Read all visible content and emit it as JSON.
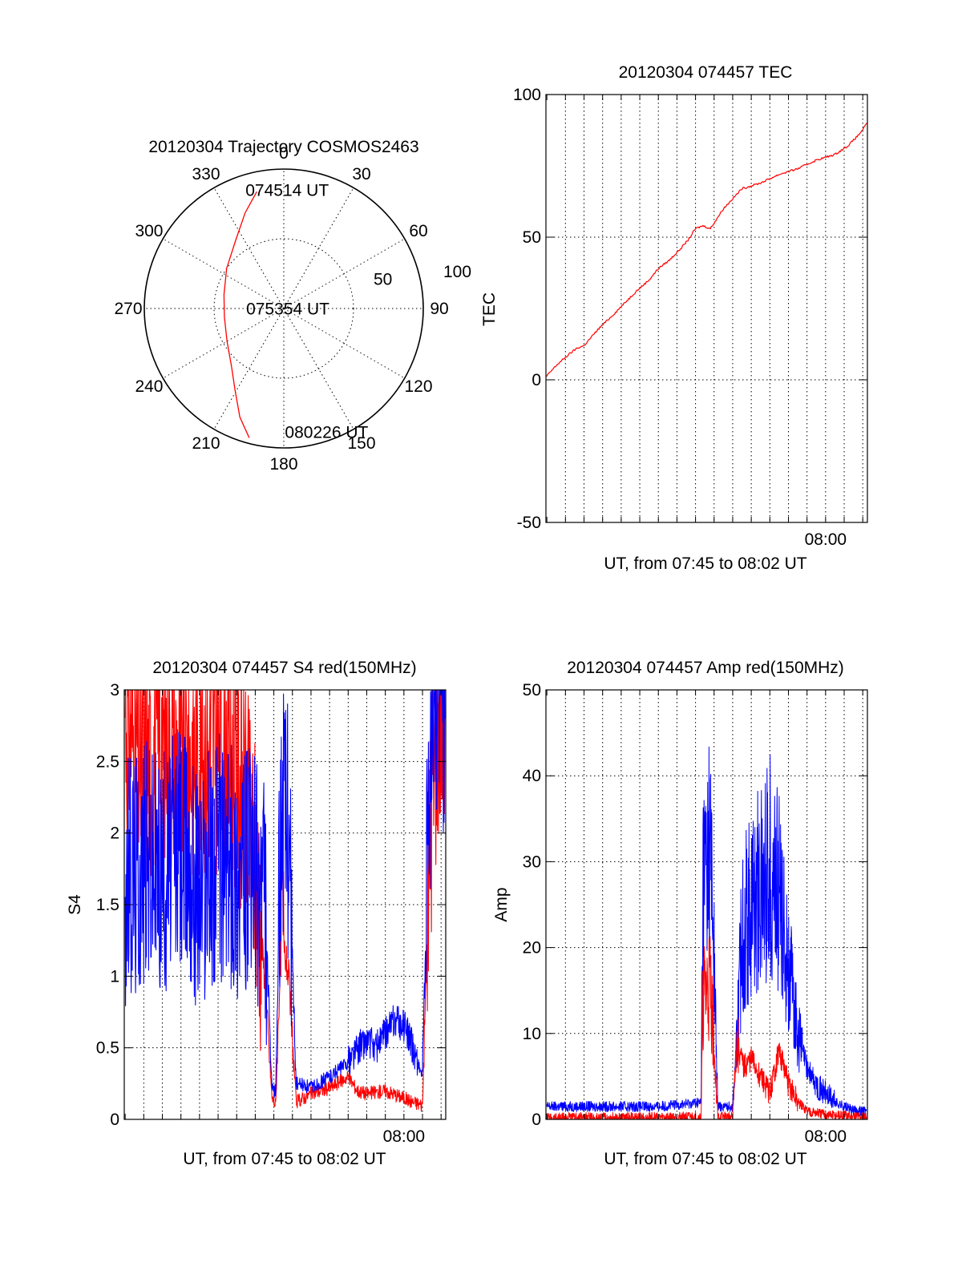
{
  "chart_data": [
    {
      "type": "polar",
      "title": "20120304 Trajectory COSMOS2463",
      "azimuth_labels": [
        "0",
        "30",
        "60",
        "90",
        "120",
        "150",
        "180",
        "210",
        "240",
        "270",
        "300",
        "330"
      ],
      "radial_labels": [
        "50",
        "100"
      ],
      "r_max": 100,
      "trajectory": {
        "color": "#ff0000",
        "points": [
          {
            "az": 347,
            "r": 86
          },
          {
            "az": 338,
            "r": 74
          },
          {
            "az": 325,
            "r": 60
          },
          {
            "az": 305,
            "r": 50
          },
          {
            "az": 283,
            "r": 44
          },
          {
            "az": 262,
            "r": 43
          },
          {
            "az": 240,
            "r": 47
          },
          {
            "az": 222,
            "r": 56
          },
          {
            "az": 211,
            "r": 68
          },
          {
            "az": 202,
            "r": 84
          },
          {
            "az": 195,
            "r": 96
          }
        ]
      },
      "time_labels": [
        {
          "text": "074514 UT",
          "az": 357,
          "r": 85
        },
        {
          "text": "075354 UT",
          "az": 265,
          "r": 4
        },
        {
          "text": "080226 UT",
          "az": 165,
          "r": 92
        }
      ]
    },
    {
      "type": "line",
      "title": "20120304 074457 TEC",
      "ylabel": "TEC",
      "xlabel": "UT, from 07:45 to 08:02 UT",
      "xlim": [
        44.95,
        62.25
      ],
      "ylim": [
        -50,
        100
      ],
      "yticks": [
        -50,
        0,
        50,
        100
      ],
      "xtick_labels": [
        {
          "x": 60,
          "label": "08:00"
        }
      ],
      "grid": true,
      "series": [
        {
          "name": "TEC",
          "color": "#ff0000",
          "x": [
            44.95,
            45.5,
            46.2,
            46.6,
            47.0,
            47.8,
            48.6,
            49.2,
            49.8,
            50.5,
            51.0,
            51.6,
            52.2,
            52.6,
            53.0,
            53.4,
            53.8,
            54.5,
            55.5,
            56.5,
            57.5,
            58.5,
            59.5,
            60.5,
            61.2,
            61.8,
            62.25
          ],
          "values": [
            1,
            5,
            9,
            11,
            12,
            18,
            23,
            27,
            31,
            35,
            39,
            42,
            46,
            49,
            53,
            54,
            53,
            60,
            67,
            69,
            72,
            74,
            77,
            79,
            82,
            86,
            90
          ]
        }
      ]
    },
    {
      "type": "line",
      "title": "20120304 074457 S4 red(150MHz)",
      "ylabel": "S4",
      "xlabel": "UT, from 07:45 to 08:02 UT",
      "xlim": [
        44.95,
        62.25
      ],
      "ylim": [
        0,
        3
      ],
      "yticks": [
        0,
        0.5,
        1,
        1.5,
        2,
        2.5,
        3
      ],
      "xtick_labels": [
        {
          "x": 60,
          "label": "08:00"
        }
      ],
      "grid": true,
      "series": [
        {
          "name": "red",
          "color": "#ff0000",
          "x": [
            45.0,
            46.0,
            47.0,
            48.0,
            49.0,
            50.0,
            51.0,
            52.0,
            52.5,
            52.9,
            53.1,
            53.4,
            53.8,
            54.2,
            55.0,
            56.0,
            57.0,
            57.5,
            58.0,
            59.0,
            60.0,
            60.5,
            61.0,
            61.4,
            61.8,
            62.2
          ],
          "values": [
            2.9,
            2.4,
            2.7,
            2.5,
            2.6,
            2.6,
            2.5,
            1.8,
            1.0,
            0.15,
            0.1,
            1.3,
            1.0,
            0.12,
            0.18,
            0.22,
            0.3,
            0.2,
            0.18,
            0.2,
            0.15,
            0.12,
            0.1,
            2.0,
            2.8,
            3.0
          ]
        },
        {
          "name": "blue",
          "color": "#0000ff",
          "x": [
            45.0,
            46.0,
            47.0,
            48.0,
            49.0,
            50.0,
            51.0,
            52.0,
            52.5,
            52.9,
            53.1,
            53.4,
            53.8,
            54.2,
            55.0,
            56.0,
            57.0,
            57.5,
            58.0,
            58.5,
            59.0,
            59.5,
            60.0,
            60.5,
            61.0,
            61.4,
            61.8,
            62.2
          ],
          "values": [
            1.6,
            1.8,
            1.7,
            1.9,
            1.6,
            1.8,
            1.7,
            1.7,
            1.6,
            0.2,
            0.2,
            2.2,
            2.0,
            0.25,
            0.22,
            0.3,
            0.4,
            0.5,
            0.55,
            0.5,
            0.6,
            0.7,
            0.65,
            0.5,
            0.3,
            2.5,
            3.0,
            2.8
          ]
        }
      ]
    },
    {
      "type": "line",
      "title": "20120304 074457 Amp red(150MHz)",
      "ylabel": "Amp",
      "xlabel": "UT, from 07:45 to 08:02 UT",
      "xlim": [
        44.95,
        62.25
      ],
      "ylim": [
        0,
        50
      ],
      "yticks": [
        0,
        10,
        20,
        30,
        40,
        50
      ],
      "xtick_labels": [
        {
          "x": 60,
          "label": "08:00"
        }
      ],
      "grid": true,
      "series": [
        {
          "name": "blue",
          "color": "#0000ff",
          "x": [
            45.0,
            47.0,
            49.0,
            51.0,
            52.5,
            53.3,
            53.4,
            53.8,
            54.0,
            54.2,
            55.0,
            55.3,
            55.5,
            56.0,
            56.5,
            57.0,
            57.5,
            58.0,
            58.5,
            59.0,
            59.5,
            60.0,
            60.5,
            61.0,
            61.5,
            62.2
          ],
          "values": [
            1.5,
            1.5,
            1.5,
            1.5,
            1.8,
            2.0,
            28,
            32,
            18,
            1.5,
            1.5,
            12,
            22,
            25,
            27,
            30,
            26,
            18,
            10,
            6,
            4,
            3,
            2,
            1.5,
            1.0,
            1.0
          ]
        },
        {
          "name": "red",
          "color": "#ff0000",
          "x": [
            45.0,
            49.0,
            53.3,
            53.4,
            53.8,
            54.0,
            54.2,
            55.0,
            55.2,
            55.6,
            56.0,
            56.5,
            57.0,
            57.5,
            58.0,
            58.5,
            59.0,
            60.0,
            62.2
          ],
          "values": [
            0.2,
            0.2,
            0.3,
            14,
            16,
            8,
            0.3,
            0.3,
            9,
            6,
            7,
            5,
            3,
            8,
            4,
            2,
            1,
            0.5,
            0.3
          ]
        }
      ]
    }
  ]
}
